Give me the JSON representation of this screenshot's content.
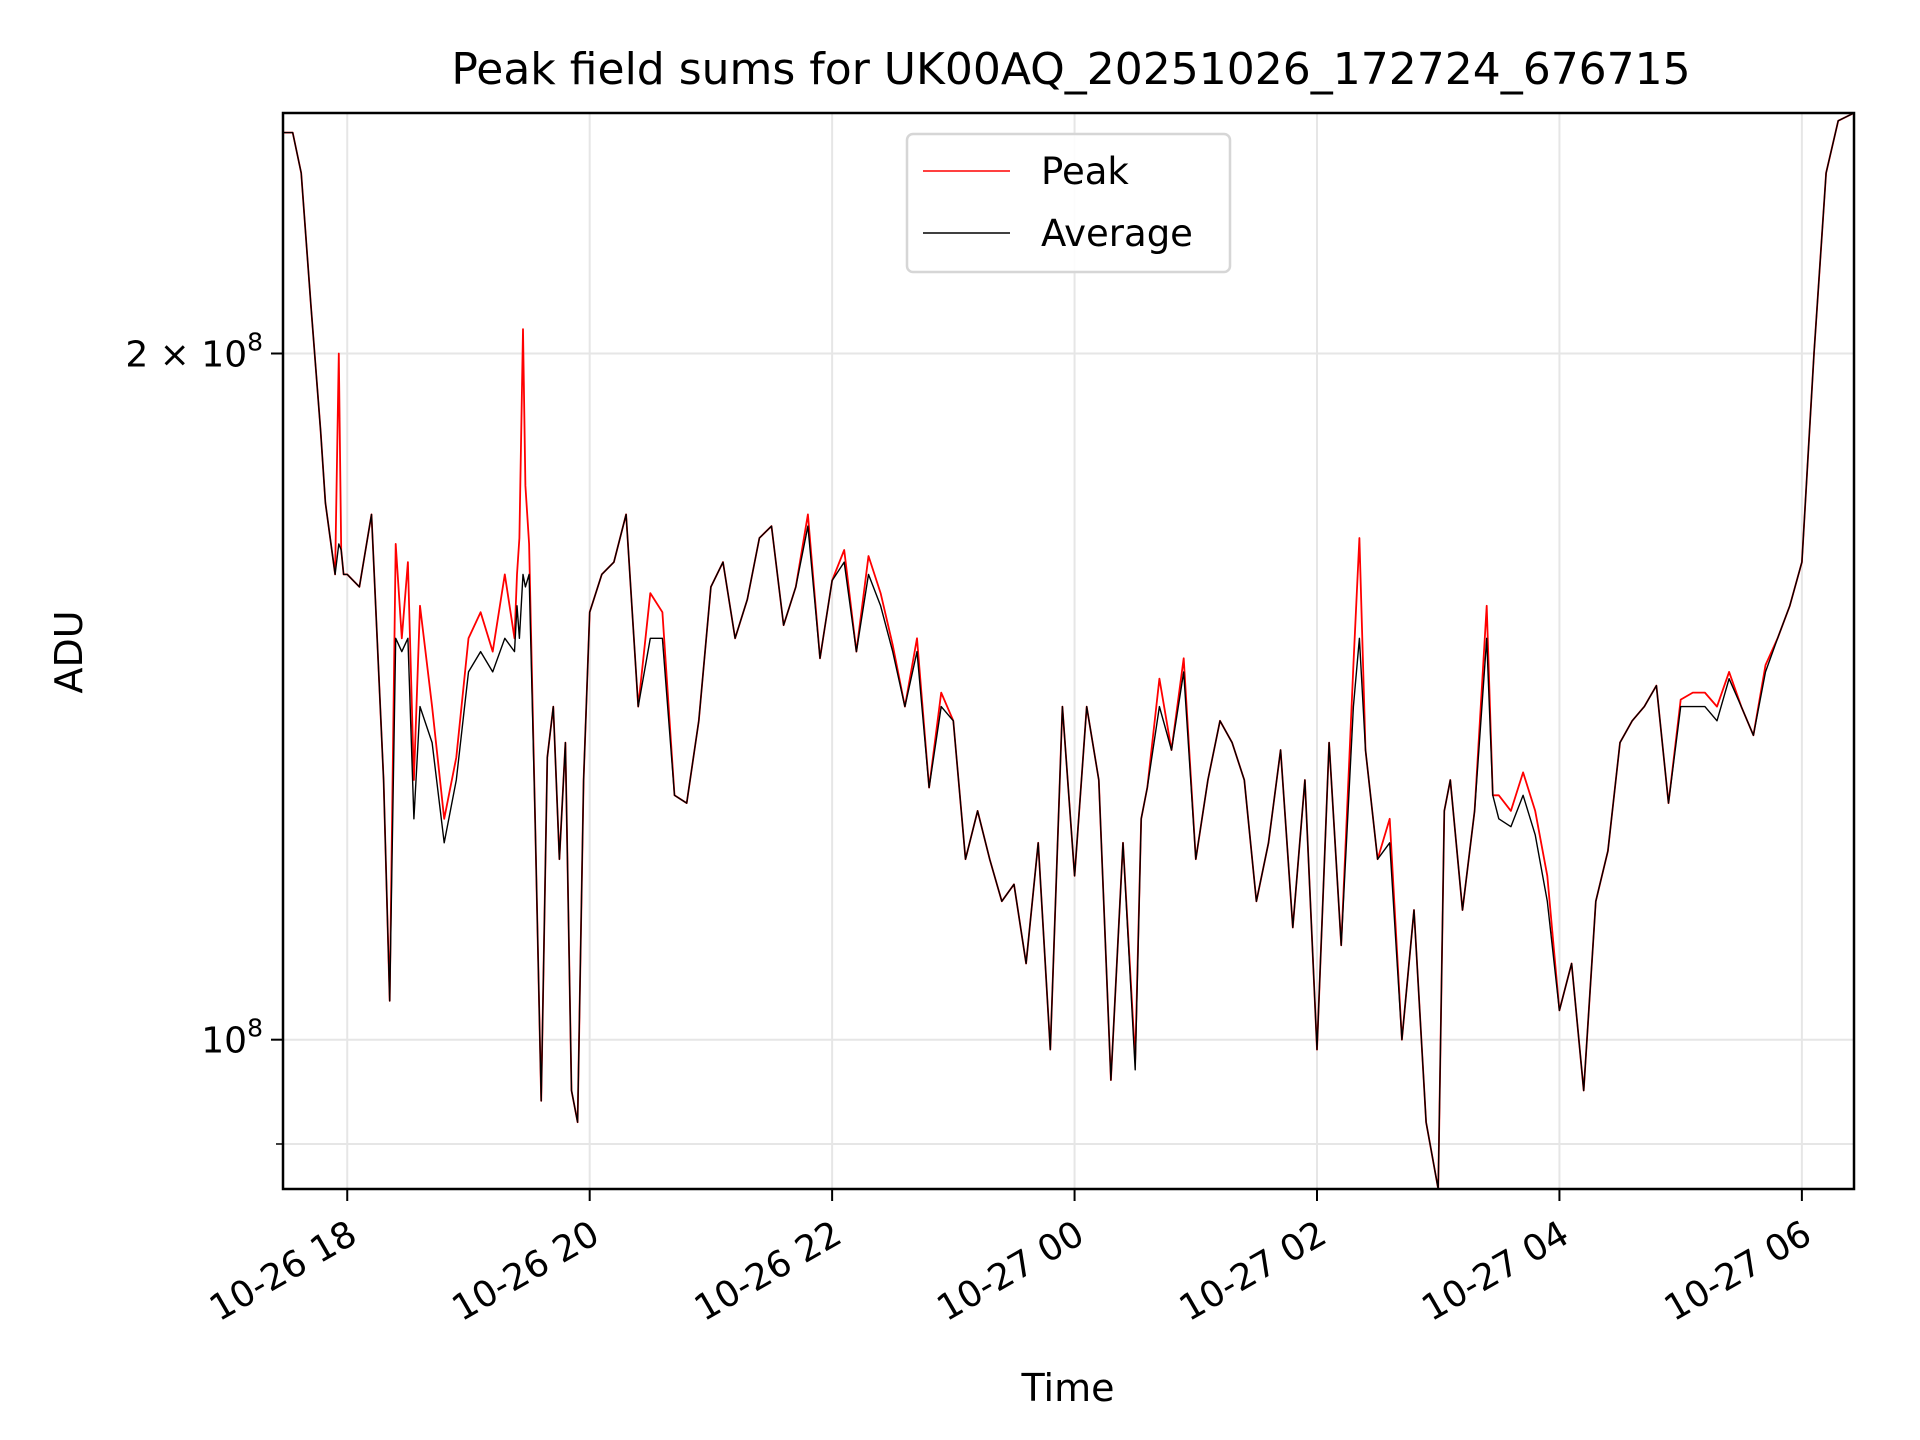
{
  "chart_data": {
    "type": "line",
    "title": "Peak field sums for UK00AQ_20251026_172724_676715",
    "xlabel": "Time",
    "ylabel": "ADU",
    "yscale": "log",
    "grid": true,
    "legend_position": "top-center",
    "xlim_hours": [
      17.47,
      30.43
    ],
    "ylim": [
      86000000,
      255000000
    ],
    "x_ticks": [
      {
        "hour": 18,
        "label": "10-26 18"
      },
      {
        "hour": 20,
        "label": "10-26 20"
      },
      {
        "hour": 22,
        "label": "10-26 22"
      },
      {
        "hour": 24,
        "label": "10-27 00"
      },
      {
        "hour": 26,
        "label": "10-27 02"
      },
      {
        "hour": 28,
        "label": "10-27 04"
      },
      {
        "hour": 30,
        "label": "10-27 06"
      }
    ],
    "y_major_ticks": [
      {
        "value": 100000000,
        "base": "10",
        "exp": "8",
        "coef": ""
      },
      {
        "value": 200000000,
        "base": "10",
        "exp": "8",
        "coef": "2 × "
      }
    ],
    "y_minor_ticks": [
      90000000
    ],
    "series": [
      {
        "name": "Peak",
        "color": "#ff0000",
        "hours": [
          17.47,
          17.55,
          17.62,
          17.7,
          17.78,
          17.82,
          17.9,
          17.93,
          17.95,
          17.97,
          18.0,
          18.1,
          18.2,
          18.3,
          18.35,
          18.4,
          18.45,
          18.5,
          18.55,
          18.6,
          18.7,
          18.8,
          18.9,
          19.0,
          19.1,
          19.2,
          19.3,
          19.38,
          19.4,
          19.42,
          19.45,
          19.47,
          19.5,
          19.55,
          19.6,
          19.65,
          19.7,
          19.75,
          19.8,
          19.85,
          19.9,
          19.95,
          20.0,
          20.1,
          20.2,
          20.3,
          20.4,
          20.5,
          20.6,
          20.7,
          20.8,
          20.9,
          21.0,
          21.1,
          21.2,
          21.3,
          21.4,
          21.5,
          21.6,
          21.7,
          21.8,
          21.9,
          22.0,
          22.1,
          22.2,
          22.3,
          22.4,
          22.5,
          22.6,
          22.7,
          22.8,
          22.9,
          23.0,
          23.1,
          23.2,
          23.3,
          23.4,
          23.5,
          23.6,
          23.7,
          23.8,
          23.9,
          24.0,
          24.1,
          24.2,
          24.3,
          24.4,
          24.5,
          24.55,
          24.6,
          24.7,
          24.8,
          24.9,
          25.0,
          25.1,
          25.2,
          25.3,
          25.4,
          25.5,
          25.6,
          25.7,
          25.8,
          25.9,
          26.0,
          26.1,
          26.2,
          26.3,
          26.35,
          26.4,
          26.5,
          26.6,
          26.7,
          26.8,
          26.9,
          27.0,
          27.05,
          27.1,
          27.2,
          27.3,
          27.4,
          27.45,
          27.5,
          27.6,
          27.7,
          27.8,
          27.9,
          28.0,
          28.1,
          28.2,
          28.3,
          28.4,
          28.5,
          28.6,
          28.7,
          28.8,
          28.9,
          29.0,
          29.1,
          29.2,
          29.3,
          29.4,
          29.5,
          29.6,
          29.7,
          29.8,
          29.9,
          30.0,
          30.1,
          30.2,
          30.3,
          30.43
        ],
        "values": [
          250000000,
          250000000,
          240000000,
          210000000,
          185000000,
          172000000,
          160000000,
          200000000,
          164000000,
          160000000,
          160000000,
          158000000,
          170000000,
          130000000,
          104000000,
          165000000,
          150000000,
          162000000,
          130000000,
          155000000,
          140000000,
          125000000,
          133000000,
          150000000,
          154000000,
          148000000,
          160000000,
          150000000,
          160000000,
          166000000,
          205000000,
          175000000,
          165000000,
          125000000,
          94000000,
          133000000,
          140000000,
          120000000,
          135000000,
          95000000,
          92000000,
          130000000,
          154000000,
          160000000,
          162000000,
          170000000,
          140000000,
          157000000,
          154000000,
          128000000,
          127000000,
          138000000,
          158000000,
          162000000,
          150000000,
          156000000,
          166000000,
          168000000,
          152000000,
          158000000,
          170000000,
          147000000,
          159000000,
          164000000,
          148000000,
          163000000,
          157000000,
          149000000,
          140000000,
          150000000,
          129000000,
          142000000,
          138000000,
          120000000,
          126000000,
          120000000,
          115000000,
          117000000,
          108000000,
          122000000,
          99000000,
          140000000,
          118000000,
          140000000,
          130000000,
          96000000,
          122000000,
          98000000,
          125000000,
          129000000,
          144000000,
          134000000,
          147000000,
          120000000,
          130000000,
          138000000,
          135000000,
          130000000,
          115000000,
          122000000,
          134000000,
          112000000,
          130000000,
          99000000,
          135000000,
          110000000,
          146000000,
          166000000,
          134000000,
          120000000,
          125000000,
          100000000,
          114000000,
          92000000,
          86000000,
          126000000,
          130000000,
          114000000,
          126000000,
          155000000,
          128000000,
          128000000,
          126000000,
          131000000,
          126000000,
          118000000,
          103000000,
          108000000,
          95000000,
          115000000,
          121000000,
          135000000,
          138000000,
          140000000,
          143000000,
          127000000,
          141000000,
          142000000,
          142000000,
          140000000,
          145000000,
          140000000,
          136000000,
          146000000,
          150000000,
          155000000,
          162000000,
          200000000,
          240000000,
          253000000,
          255000000
        ]
      },
      {
        "name": "Average",
        "color": "#000000",
        "hours": [
          17.47,
          17.55,
          17.62,
          17.7,
          17.78,
          17.82,
          17.9,
          17.93,
          17.95,
          17.97,
          18.0,
          18.1,
          18.2,
          18.3,
          18.35,
          18.4,
          18.45,
          18.5,
          18.55,
          18.6,
          18.7,
          18.8,
          18.9,
          19.0,
          19.1,
          19.2,
          19.3,
          19.38,
          19.4,
          19.42,
          19.45,
          19.47,
          19.5,
          19.55,
          19.6,
          19.65,
          19.7,
          19.75,
          19.8,
          19.85,
          19.9,
          19.95,
          20.0,
          20.1,
          20.2,
          20.3,
          20.4,
          20.5,
          20.6,
          20.7,
          20.8,
          20.9,
          21.0,
          21.1,
          21.2,
          21.3,
          21.4,
          21.5,
          21.6,
          21.7,
          21.8,
          21.9,
          22.0,
          22.1,
          22.2,
          22.3,
          22.4,
          22.5,
          22.6,
          22.7,
          22.8,
          22.9,
          23.0,
          23.1,
          23.2,
          23.3,
          23.4,
          23.5,
          23.6,
          23.7,
          23.8,
          23.9,
          24.0,
          24.1,
          24.2,
          24.3,
          24.4,
          24.5,
          24.55,
          24.6,
          24.7,
          24.8,
          24.9,
          25.0,
          25.1,
          25.2,
          25.3,
          25.4,
          25.5,
          25.6,
          25.7,
          25.8,
          25.9,
          26.0,
          26.1,
          26.2,
          26.3,
          26.35,
          26.4,
          26.5,
          26.6,
          26.7,
          26.8,
          26.9,
          27.0,
          27.05,
          27.1,
          27.2,
          27.3,
          27.4,
          27.45,
          27.5,
          27.6,
          27.7,
          27.8,
          27.9,
          28.0,
          28.1,
          28.2,
          28.3,
          28.4,
          28.5,
          28.6,
          28.7,
          28.8,
          28.9,
          29.0,
          29.1,
          29.2,
          29.3,
          29.4,
          29.5,
          29.6,
          29.7,
          29.8,
          29.9,
          30.0,
          30.1,
          30.2,
          30.3,
          30.43
        ],
        "values": [
          250000000,
          250000000,
          240000000,
          210000000,
          185000000,
          172000000,
          160000000,
          165000000,
          164000000,
          160000000,
          160000000,
          158000000,
          170000000,
          130000000,
          104000000,
          150000000,
          148000000,
          150000000,
          125000000,
          140000000,
          135000000,
          122000000,
          130000000,
          145000000,
          148000000,
          145000000,
          150000000,
          148000000,
          155000000,
          150000000,
          160000000,
          158000000,
          160000000,
          125000000,
          94000000,
          133000000,
          140000000,
          120000000,
          135000000,
          95000000,
          92000000,
          130000000,
          154000000,
          160000000,
          162000000,
          170000000,
          140000000,
          150000000,
          150000000,
          128000000,
          127000000,
          138000000,
          158000000,
          162000000,
          150000000,
          156000000,
          166000000,
          168000000,
          152000000,
          158000000,
          168000000,
          147000000,
          159000000,
          162000000,
          148000000,
          160000000,
          155000000,
          148000000,
          140000000,
          148000000,
          129000000,
          140000000,
          138000000,
          120000000,
          126000000,
          120000000,
          115000000,
          117000000,
          108000000,
          122000000,
          99000000,
          140000000,
          118000000,
          140000000,
          130000000,
          96000000,
          122000000,
          97000000,
          125000000,
          129000000,
          140000000,
          134000000,
          145000000,
          120000000,
          130000000,
          138000000,
          135000000,
          130000000,
          115000000,
          122000000,
          134000000,
          112000000,
          130000000,
          99000000,
          135000000,
          110000000,
          140000000,
          150000000,
          134000000,
          120000000,
          122000000,
          100000000,
          114000000,
          92000000,
          86000000,
          126000000,
          130000000,
          114000000,
          126000000,
          150000000,
          128000000,
          125000000,
          124000000,
          128000000,
          123000000,
          115000000,
          103000000,
          108000000,
          95000000,
          115000000,
          121000000,
          135000000,
          138000000,
          140000000,
          143000000,
          127000000,
          140000000,
          140000000,
          140000000,
          138000000,
          144000000,
          140000000,
          136000000,
          145000000,
          150000000,
          155000000,
          162000000,
          200000000,
          240000000,
          253000000,
          255000000
        ]
      }
    ]
  }
}
